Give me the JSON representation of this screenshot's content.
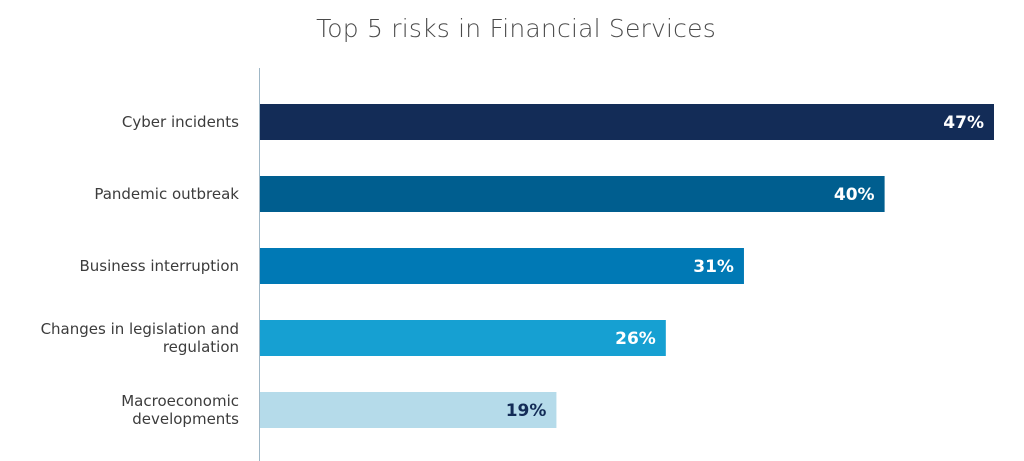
{
  "chart_data": {
    "type": "bar",
    "orientation": "horizontal",
    "title": "Top 5 risks in Financial Services",
    "categories": [
      [
        "Cyber incidents"
      ],
      [
        "Pandemic outbreak"
      ],
      [
        "Business interruption"
      ],
      [
        "Changes in legislation and",
        "regulation"
      ],
      [
        "Macroeconomic",
        "developments"
      ]
    ],
    "values": [
      47,
      40,
      31,
      26,
      19
    ],
    "value_labels": [
      "47%",
      "40%",
      "31%",
      "26%",
      "19%"
    ],
    "unit": "%",
    "xlim": [
      0,
      47
    ],
    "grid": false,
    "legend": "none",
    "colors": [
      "#132c57",
      "#005e8f",
      "#0079b5",
      "#16a0d2",
      "#b5dbea"
    ],
    "value_label_colors": [
      "#ffffff",
      "#ffffff",
      "#ffffff",
      "#ffffff",
      "#132c57"
    ],
    "axis_color": "#9fb7c6"
  }
}
